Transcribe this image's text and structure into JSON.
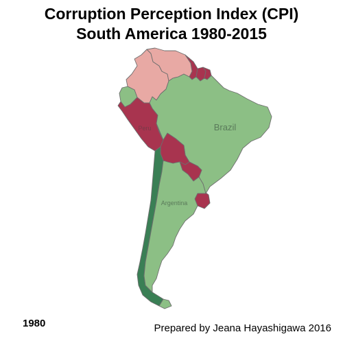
{
  "header": {
    "title_line1": "Corruption Perception Index (CPI)",
    "title_line2": "South America 1980-2015"
  },
  "map": {
    "labels": {
      "brazil": "Brazil",
      "peru": "Peru",
      "argentina": "Argentina"
    },
    "colors": {
      "high_corruption": "#a8344f",
      "moderate_corruption": "#e8a9a4",
      "low_corruption": "#8cbf85",
      "lowest_corruption": "#3a7f55",
      "outline": "#6e6e6e"
    },
    "countries": [
      {
        "name": "Venezuela",
        "color": "#e8a9a4"
      },
      {
        "name": "Colombia",
        "color": "#e8a9a4"
      },
      {
        "name": "Guyana",
        "color": "#a8344f"
      },
      {
        "name": "Suriname",
        "color": "#a8344f"
      },
      {
        "name": "French Guiana",
        "color": "#a8344f"
      },
      {
        "name": "Ecuador",
        "color": "#8cbf85"
      },
      {
        "name": "Peru",
        "color": "#a8344f"
      },
      {
        "name": "Brazil",
        "color": "#8cbf85"
      },
      {
        "name": "Bolivia",
        "color": "#a8344f"
      },
      {
        "name": "Paraguay",
        "color": "#a8344f"
      },
      {
        "name": "Uruguay",
        "color": "#a8344f"
      },
      {
        "name": "Chile",
        "color": "#3a7f55"
      },
      {
        "name": "Argentina",
        "color": "#8cbf85"
      }
    ]
  },
  "footer": {
    "year": "1980",
    "credit": "Prepared by Jeana Hayashigawa 2016"
  }
}
